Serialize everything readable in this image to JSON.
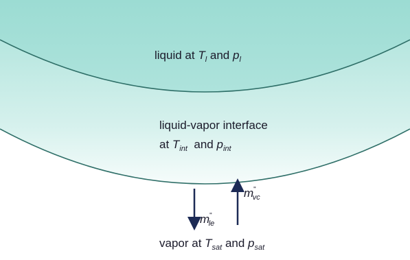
{
  "labels": {
    "liquid": [
      "liquid at ",
      "T",
      "l",
      " and ",
      "p",
      "l"
    ],
    "interface_line1": [
      "liquid-vapor interface"
    ],
    "interface_line2": [
      "at ",
      "T",
      "int",
      "  and ",
      "p",
      "int"
    ],
    "flux_down": [
      "m",
      "\"",
      "le"
    ],
    "flux_up": [
      "m",
      "\"",
      "vc"
    ],
    "vapor": [
      "vapor at ",
      "T",
      "sat",
      " and ",
      "p",
      "sat"
    ]
  }
}
